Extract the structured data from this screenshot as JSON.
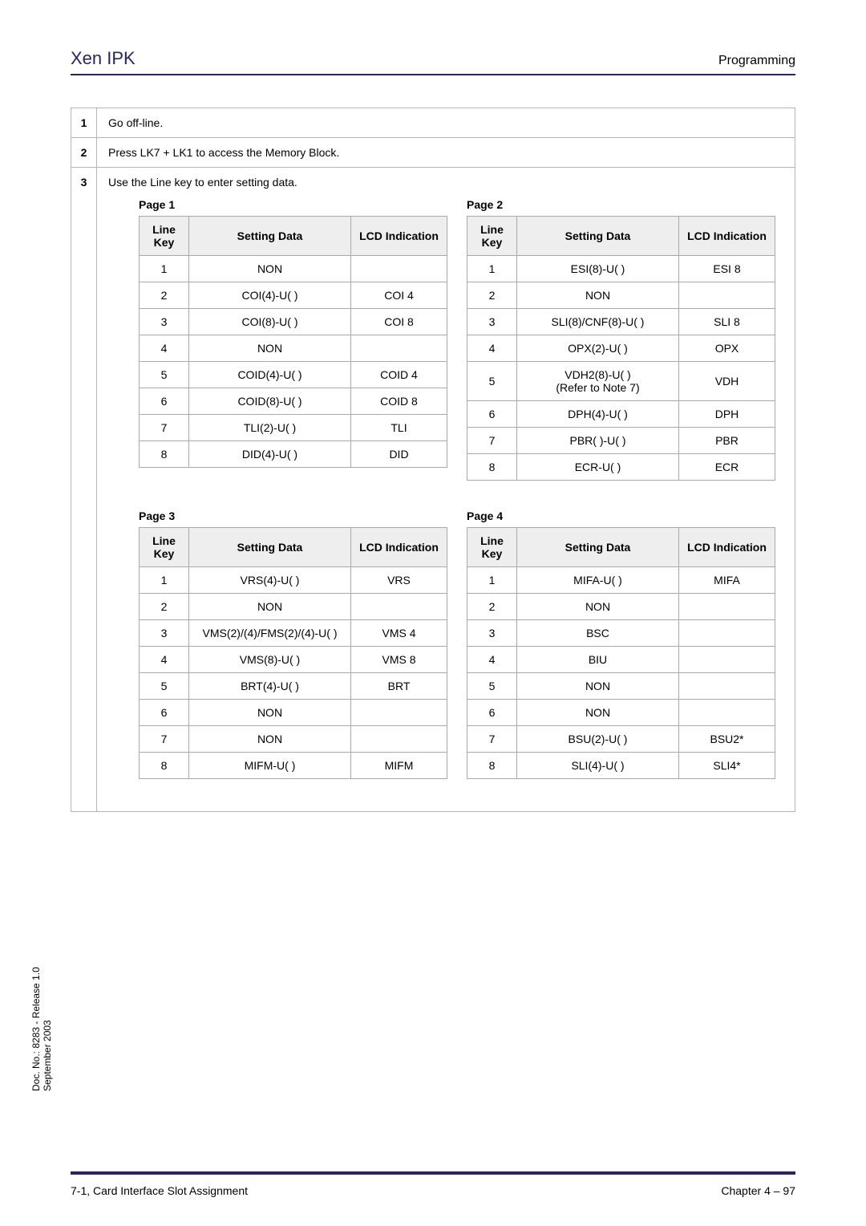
{
  "header": {
    "brand": "Xen IPK",
    "right": "Programming"
  },
  "steps": [
    {
      "num": "1",
      "text": "Go off-line."
    },
    {
      "num": "2",
      "text": "Press LK7 + LK1 to access the Memory Block."
    },
    {
      "num": "3",
      "text": "Use the Line key to enter setting data."
    }
  ],
  "columns": {
    "lineKey": "Line Key",
    "settingData": "Setting Data",
    "lcd": "LCD Indication"
  },
  "pages": [
    {
      "title": "Page 1",
      "rows": [
        {
          "k": "1",
          "s": "NON",
          "l": ""
        },
        {
          "k": "2",
          "s": "COI(4)-U(  )",
          "l": "COI 4"
        },
        {
          "k": "3",
          "s": "COI(8)-U(  )",
          "l": "COI 8"
        },
        {
          "k": "4",
          "s": "NON",
          "l": ""
        },
        {
          "k": "5",
          "s": "COID(4)-U(  )",
          "l": "COID 4"
        },
        {
          "k": "6",
          "s": "COID(8)-U(  )",
          "l": "COID 8"
        },
        {
          "k": "7",
          "s": "TLI(2)-U(  )",
          "l": "TLI"
        },
        {
          "k": "8",
          "s": "DID(4)-U(  )",
          "l": "DID"
        }
      ]
    },
    {
      "title": "Page 2",
      "rows": [
        {
          "k": "1",
          "s": "ESI(8)-U(  )",
          "l": "ESI 8"
        },
        {
          "k": "2",
          "s": "NON",
          "l": ""
        },
        {
          "k": "3",
          "s": "SLI(8)/CNF(8)-U( )",
          "l": "SLI 8"
        },
        {
          "k": "4",
          "s": "OPX(2)-U( )",
          "l": "OPX"
        },
        {
          "k": "5",
          "s": "VDH2(8)-U( )\n(Refer to Note 7)",
          "l": "VDH"
        },
        {
          "k": "6",
          "s": "DPH(4)-U( )",
          "l": "DPH"
        },
        {
          "k": "7",
          "s": "PBR( )-U( )",
          "l": "PBR"
        },
        {
          "k": "8",
          "s": "ECR-U( )",
          "l": "ECR"
        }
      ]
    },
    {
      "title": "Page 3",
      "rows": [
        {
          "k": "1",
          "s": "VRS(4)-U( )",
          "l": "VRS"
        },
        {
          "k": "2",
          "s": "NON",
          "l": ""
        },
        {
          "k": "3",
          "s": "VMS(2)/(4)/FMS(2)/(4)-U(  )",
          "l": "VMS 4"
        },
        {
          "k": "4",
          "s": "VMS(8)-U( )",
          "l": "VMS 8"
        },
        {
          "k": "5",
          "s": "BRT(4)-U( )",
          "l": "BRT"
        },
        {
          "k": "6",
          "s": "NON",
          "l": ""
        },
        {
          "k": "7",
          "s": "NON",
          "l": ""
        },
        {
          "k": "8",
          "s": "MIFM-U( )",
          "l": "MIFM"
        }
      ]
    },
    {
      "title": "Page 4",
      "rows": [
        {
          "k": "1",
          "s": "MIFA-U( )",
          "l": "MIFA"
        },
        {
          "k": "2",
          "s": "NON",
          "l": ""
        },
        {
          "k": "3",
          "s": "BSC",
          "l": ""
        },
        {
          "k": "4",
          "s": "BIU",
          "l": ""
        },
        {
          "k": "5",
          "s": "NON",
          "l": ""
        },
        {
          "k": "6",
          "s": "NON",
          "l": ""
        },
        {
          "k": "7",
          "s": "BSU(2)-U(  )",
          "l": "BSU2*"
        },
        {
          "k": "8",
          "s": "SLI(4)-U(  )",
          "l": "SLI4*"
        }
      ]
    }
  ],
  "sideNote": {
    "line1": "Doc. No.: 8283 - Release 1.0",
    "line2": "September 2003"
  },
  "footer": {
    "left": "7-1, Card Interface Slot Assignment",
    "right": "Chapter 4 – 97"
  },
  "colors": {
    "accent": "#29265e",
    "border": "#b5b5b5",
    "thBg": "#eeeeee"
  }
}
